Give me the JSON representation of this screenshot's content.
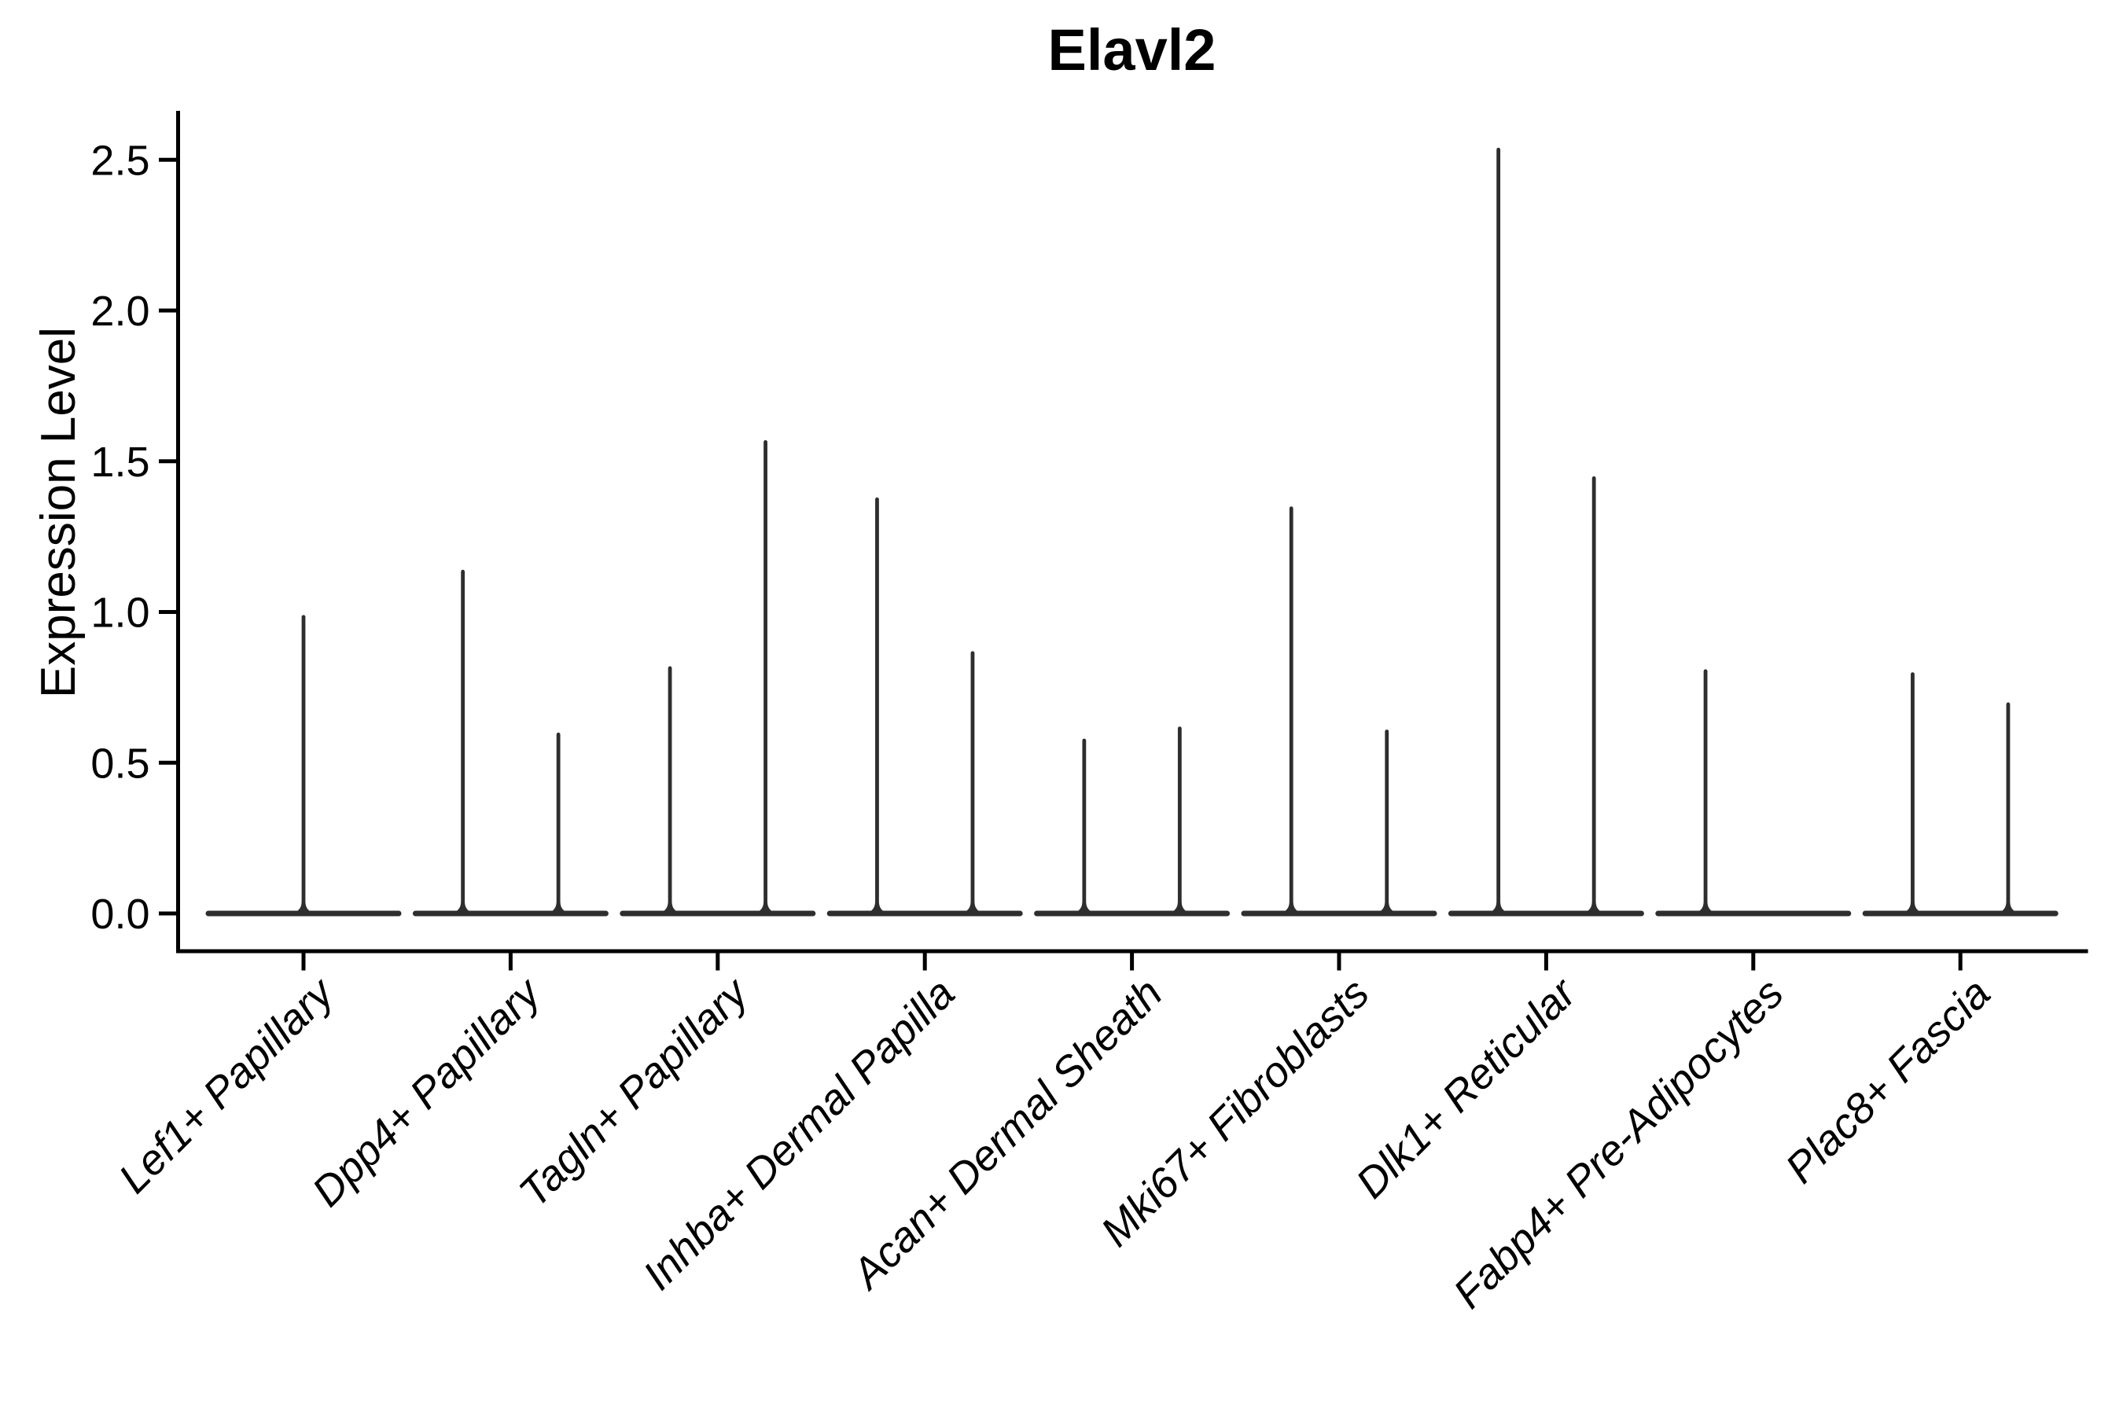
{
  "chart_data": {
    "type": "violin",
    "title": "Elavl2",
    "ylabel": "Expression Level",
    "xlabel": "",
    "ylim": [
      0,
      2.66
    ],
    "grid": false,
    "legend": "none",
    "violin_color": "#2e2e2e",
    "axis_color": "#000000",
    "yticks": [
      "0.0",
      "0.5",
      "1.0",
      "1.5",
      "2.0",
      "2.5"
    ],
    "ytick_values": [
      0.0,
      0.5,
      1.0,
      1.5,
      2.0,
      2.5
    ],
    "categories": [
      "Lef1+ Papillary",
      "Dpp4+ Papillary",
      "Tagln+ Papillary",
      "Inhba+ Dermal Papilla",
      "Acan+ Dermal Sheath",
      "Mki67+ Fibroblasts",
      "Dlk1+ Reticular",
      "Fabp4+ Pre-Adipocytes",
      "Plac8+ Fascia"
    ],
    "description": "Violin plot of Elavl2 expression; expression is near zero in most cells so each violin collapses to a flat baseline at 0 with a thin central spike reaching the maximum expression value. Most categories show two side-by-side violins.",
    "series": [
      {
        "category": "Lef1+ Papillary",
        "violins": [
          {
            "slot": "center",
            "max": 0.99
          }
        ]
      },
      {
        "category": "Dpp4+ Papillary",
        "violins": [
          {
            "slot": "left",
            "max": 1.14
          },
          {
            "slot": "right",
            "max": 0.6
          }
        ]
      },
      {
        "category": "Tagln+ Papillary",
        "violins": [
          {
            "slot": "left",
            "max": 0.82
          },
          {
            "slot": "right",
            "max": 1.57
          }
        ]
      },
      {
        "category": "Inhba+ Dermal Papilla",
        "violins": [
          {
            "slot": "left",
            "max": 1.38
          },
          {
            "slot": "right",
            "max": 0.87
          }
        ]
      },
      {
        "category": "Acan+ Dermal Sheath",
        "violins": [
          {
            "slot": "left",
            "max": 0.58
          },
          {
            "slot": "right",
            "max": 0.62
          }
        ]
      },
      {
        "category": "Mki67+ Fibroblasts",
        "violins": [
          {
            "slot": "left",
            "max": 1.35
          },
          {
            "slot": "right",
            "max": 0.61
          }
        ]
      },
      {
        "category": "Dlk1+ Reticular",
        "violins": [
          {
            "slot": "left",
            "max": 2.54
          },
          {
            "slot": "right",
            "max": 1.45
          }
        ]
      },
      {
        "category": "Fabp4+ Pre-Adipocytes",
        "violins": [
          {
            "slot": "left",
            "max": 0.81
          }
        ]
      },
      {
        "category": "Plac8+ Fascia",
        "violins": [
          {
            "slot": "left",
            "max": 0.8
          },
          {
            "slot": "right",
            "max": 0.7
          }
        ]
      }
    ]
  }
}
